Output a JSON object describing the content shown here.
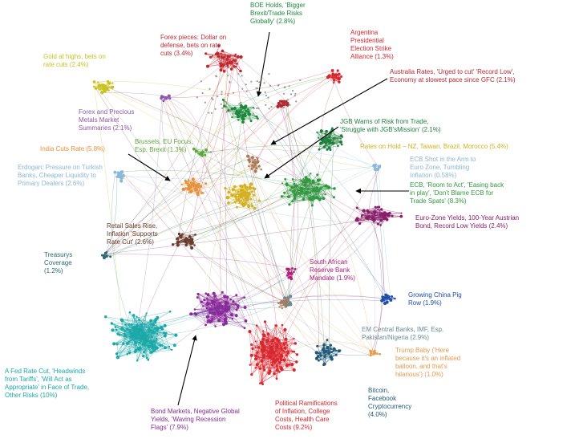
{
  "clusters": [
    {
      "id": "boe",
      "label": "BOE Holds, 'Bigger\nBrexit/Trade Risks\nGlobally' (2.8%)",
      "color": "#1a8a3a"
    },
    {
      "id": "forexpieces",
      "label": "Forex pieces: Dollar on\ndefense, bets on rate\ncuts (3.4%)",
      "color": "#c0282e"
    },
    {
      "id": "argentina",
      "label": "Argentina\nPresidential\nElection Strike\nAlliance (1.3%)",
      "color": "#d8262e"
    },
    {
      "id": "gold",
      "label": "Gold at highs, bets on\nrate cuts (2.4%)",
      "color": "#c8c21e"
    },
    {
      "id": "australia",
      "label": "Australia Rates, 'Urged to cut' 'Record Low',\nEconomy at slowest pace since GFC (2.1%)",
      "color": "#b22a30"
    },
    {
      "id": "forexmetals",
      "label": "Forex and Precious\nMetals Market\nSummaries (2.1%)",
      "color": "#8b5aa8"
    },
    {
      "id": "jgb",
      "label": "JGB Warns of Risk from Trade,\n'Struggle with JGB'sMission' (2.1%)",
      "color": "#1f7f3d"
    },
    {
      "id": "india",
      "label": "India Cuts Rate (5.8%)",
      "color": "#e8913a"
    },
    {
      "id": "brussels",
      "label": "Brussels, EU Focus,\nEsp. Brexit (1.3%)",
      "color": "#5aa83a"
    },
    {
      "id": "ratesonhold",
      "label": "Rates on Hold – NZ, Taiwan, Brazil, Morocco (5.4%)",
      "color": "#d4b01e"
    },
    {
      "id": "erdogan",
      "label": "Erdogan: Pressure on Turkish\nBanks, Cheaper Liquidity to\nPrimary Dealers (2.6%)",
      "color": "#8ab8d8"
    },
    {
      "id": "ecbshot",
      "label": "ECB Shot in the Arm to\nEuro Zone, Tumbling\nInflation (0.58%)",
      "color": "#8ab8d8"
    },
    {
      "id": "ecbroom",
      "label": "ECB, 'Room to Act', 'Easing back\nin play', 'Don't Blame ECB for\nTrade Spats' (8.3%)",
      "color": "#2e9a3c"
    },
    {
      "id": "retail",
      "label": "Retail Sales Rise,\nInflation 'Supports\nRate Cut' (2.6%)",
      "color": "#6a3a2a"
    },
    {
      "id": "eurozone",
      "label": "Euro-Zone Yields, 100-Year Austrian\nBond, Record Low Yields (2.4%)",
      "color": "#8a1e6a"
    },
    {
      "id": "treasurys",
      "label": "Treasurys\nCoverage\n(1.2%)",
      "color": "#2a6a70"
    },
    {
      "id": "southafrica",
      "label": "South African\nReserve Bank\nMandate (1.9%)",
      "color": "#b0207a"
    },
    {
      "id": "chinapig",
      "label": "Growing China Pig\nRow (1.9%)",
      "color": "#1e4ea8"
    },
    {
      "id": "emcentral",
      "label": "EM Central Banks, IMF, Esp.\nPakistan/Nigeria (2.9%)",
      "color": "#6a8a9a"
    },
    {
      "id": "trumpbaby",
      "label": "Trump Baby ('Here\nbecause it's an inflated\nballoon, and that's\nhilarious') (1.0%)",
      "color": "#e89a4a"
    },
    {
      "id": "fedrate",
      "label": "A Fed Rate Cut, 'Headwinds\nfrom Tariffs', 'Will Act as\nAppropriate' in Face of Trade,\nOther Risks (10%)",
      "color": "#1aa8a8"
    },
    {
      "id": "bitcoin",
      "label": "Bitcoin,\nFacebook\nCryptocurrency\n(4.0%)",
      "color": "#1e5a78"
    },
    {
      "id": "bondmarkets",
      "label": "Bond Markets, Negative Global\nYields, 'Waving Recession\nFlags' (7.9%)",
      "color": "#8a2a9a"
    },
    {
      "id": "political",
      "label": "Political Ramifications\nof Inflation, College\nCosts, Health Care\nCosts (9.2%)",
      "color": "#d8262e"
    }
  ]
}
